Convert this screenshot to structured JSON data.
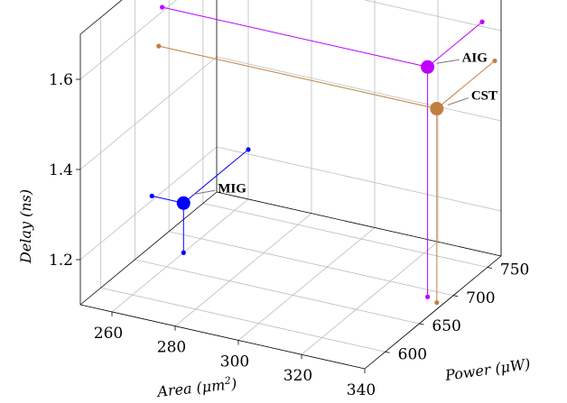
{
  "chart_data": {
    "type": "scatter",
    "projection": "3d",
    "title": "",
    "xlabel": "Area ($\\mu m^2$)",
    "ylabel": "Power ($\\mu W$)",
    "zlabel": "Delay ($ns$)",
    "xlim": [
      250,
      340
    ],
    "ylim": [
      570,
      770
    ],
    "zlim": [
      1.1,
      1.7
    ],
    "xticks": [
      "260",
      "280",
      "300",
      "320",
      "340"
    ],
    "yticks": [
      "600",
      "650",
      "700",
      "750"
    ],
    "zticks": [
      "1.2",
      "1.4",
      "1.6"
    ],
    "grid": true,
    "show_projections": true,
    "points": [
      {
        "name": "MIG",
        "x": 260,
        "y": 675,
        "z": 1.21,
        "color": "#0000ff"
      },
      {
        "name": "AIG",
        "x": 334,
        "y": 690,
        "z": 1.61,
        "color": "#bf00ff"
      },
      {
        "name": "CST",
        "x": 338,
        "y": 685,
        "z": 1.53,
        "color": "#bf7f3f"
      }
    ]
  },
  "labels": {
    "xlabel_prefix": "Area (",
    "xlabel_unit": "μm",
    "xlabel_sup": "2",
    "xlabel_suffix": ")",
    "ylabel_prefix": "Power (",
    "ylabel_unit": "μW",
    "ylabel_suffix": ")",
    "zlabel_prefix": "Delay (",
    "zlabel_unit": "ns",
    "zlabel_suffix": ")"
  }
}
